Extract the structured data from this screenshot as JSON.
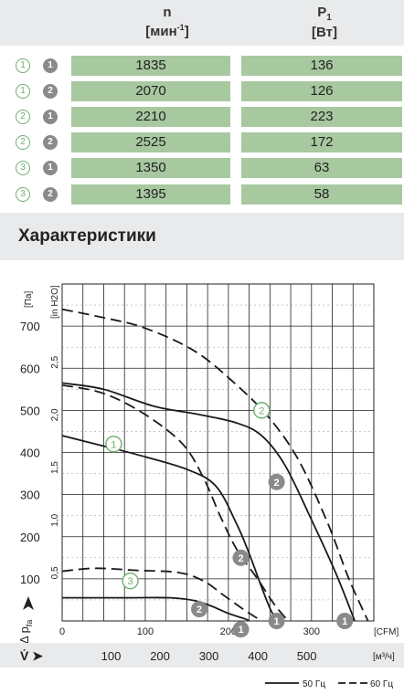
{
  "table": {
    "headers": {
      "speed": {
        "symbol": "n",
        "unit_base": "[мин",
        "unit_sup": "-1",
        "unit_end": "]"
      },
      "power": {
        "symbol": "P",
        "symbol_sub": "1",
        "unit": "[Вт]"
      }
    },
    "rows": [
      {
        "curve": "1",
        "variant": "1",
        "n": "1835",
        "p": "136"
      },
      {
        "curve": "1",
        "variant": "2",
        "n": "2070",
        "p": "126"
      },
      {
        "curve": "2",
        "variant": "1",
        "n": "2210",
        "p": "223"
      },
      {
        "curve": "2",
        "variant": "2",
        "n": "2525",
        "p": "172"
      },
      {
        "curve": "3",
        "variant": "1",
        "n": "1350",
        "p": "63"
      },
      {
        "curve": "3",
        "variant": "2",
        "n": "1395",
        "p": "58"
      }
    ]
  },
  "section": {
    "title": "Характеристики"
  },
  "colors": {
    "header_bg": "#e9eaeb",
    "cell_green": "#a8c8a0",
    "marker_green": "#6fae6f",
    "marker_grey": "#8a8a8a"
  },
  "chart_data": {
    "type": "line",
    "y_axis_left": {
      "unit": "[Па]",
      "ticks": [
        "100",
        "200",
        "300",
        "400",
        "500",
        "600",
        "700"
      ],
      "range": [
        0,
        800
      ]
    },
    "y_axis_inner": {
      "unit": "[in H2O]",
      "ticks": [
        "0,5",
        "1,0",
        "1,5",
        "2,0",
        "2,5"
      ]
    },
    "x_axis_cfm": {
      "unit": "[CFM]",
      "ticks": [
        "0",
        "100",
        "200",
        "300"
      ],
      "range": [
        0,
        375
      ]
    },
    "x_axis_m3h": {
      "unit": "[м³/ч]",
      "ticks": [
        "100",
        "200",
        "300",
        "400",
        "500"
      ]
    },
    "y_label": "Δ p",
    "y_label_sub": "fa",
    "x_label": "V̇ ➤",
    "grid": true,
    "legend": {
      "solid": "50 Гц",
      "dashed": "60 Гц",
      "position": "bottom-right"
    },
    "series": [
      {
        "curve": "1",
        "freq": "50 Гц",
        "marker": "1",
        "points": [
          [
            0,
            440
          ],
          [
            40,
            420
          ],
          [
            90,
            395
          ],
          [
            150,
            360
          ],
          [
            185,
            320
          ],
          [
            210,
            230
          ],
          [
            225,
            160
          ],
          [
            240,
            80
          ],
          [
            250,
            30
          ],
          [
            258,
            0
          ]
        ]
      },
      {
        "curve": "1",
        "freq": "60 Гц",
        "marker": "2",
        "points": [
          [
            0,
            560
          ],
          [
            50,
            540
          ],
          [
            100,
            490
          ],
          [
            145,
            420
          ],
          [
            170,
            340
          ],
          [
            190,
            250
          ],
          [
            210,
            170
          ],
          [
            235,
            100
          ],
          [
            255,
            40
          ],
          [
            272,
            0
          ]
        ]
      },
      {
        "curve": "2",
        "freq": "50 Гц",
        "marker": "1",
        "points": [
          [
            0,
            565
          ],
          [
            50,
            550
          ],
          [
            110,
            510
          ],
          [
            165,
            490
          ],
          [
            210,
            470
          ],
          [
            240,
            440
          ],
          [
            268,
            370
          ],
          [
            300,
            240
          ],
          [
            330,
            110
          ],
          [
            352,
            0
          ]
        ]
      },
      {
        "curve": "2",
        "freq": "60 Гц",
        "marker": "2",
        "points": [
          [
            0,
            740
          ],
          [
            50,
            720
          ],
          [
            100,
            695
          ],
          [
            160,
            640
          ],
          [
            210,
            560
          ],
          [
            250,
            480
          ],
          [
            285,
            380
          ],
          [
            320,
            230
          ],
          [
            345,
            100
          ],
          [
            368,
            0
          ]
        ]
      },
      {
        "curve": "3",
        "freq": "50 Гц",
        "marker": "1",
        "points": [
          [
            0,
            55
          ],
          [
            30,
            55
          ],
          [
            80,
            55
          ],
          [
            130,
            55
          ],
          [
            160,
            48
          ],
          [
            180,
            35
          ],
          [
            200,
            18
          ],
          [
            220,
            5
          ],
          [
            225,
            0
          ]
        ]
      },
      {
        "curve": "3",
        "freq": "60 Гц",
        "marker": "2",
        "points": [
          [
            0,
            118
          ],
          [
            40,
            125
          ],
          [
            90,
            120
          ],
          [
            140,
            115
          ],
          [
            170,
            95
          ],
          [
            195,
            60
          ],
          [
            220,
            25
          ],
          [
            240,
            0
          ]
        ]
      }
    ],
    "labels": [
      {
        "text": "1",
        "style": "outline",
        "x": 62,
        "y": 420
      },
      {
        "text": "2",
        "style": "outline",
        "x": 240,
        "y": 500
      },
      {
        "text": "3",
        "style": "outline",
        "x": 82,
        "y": 95
      },
      {
        "text": "1",
        "style": "filled",
        "x": 215,
        "y": -20
      },
      {
        "text": "2",
        "style": "filled",
        "x": 165,
        "y": 28
      },
      {
        "text": "1",
        "style": "filled",
        "x": 258,
        "y": 0
      },
      {
        "text": "2",
        "style": "filled",
        "x": 215,
        "y": 150
      },
      {
        "text": "2",
        "style": "filled",
        "x": 258,
        "y": 330
      },
      {
        "text": "1",
        "style": "filled",
        "x": 340,
        "y": 0
      }
    ]
  }
}
